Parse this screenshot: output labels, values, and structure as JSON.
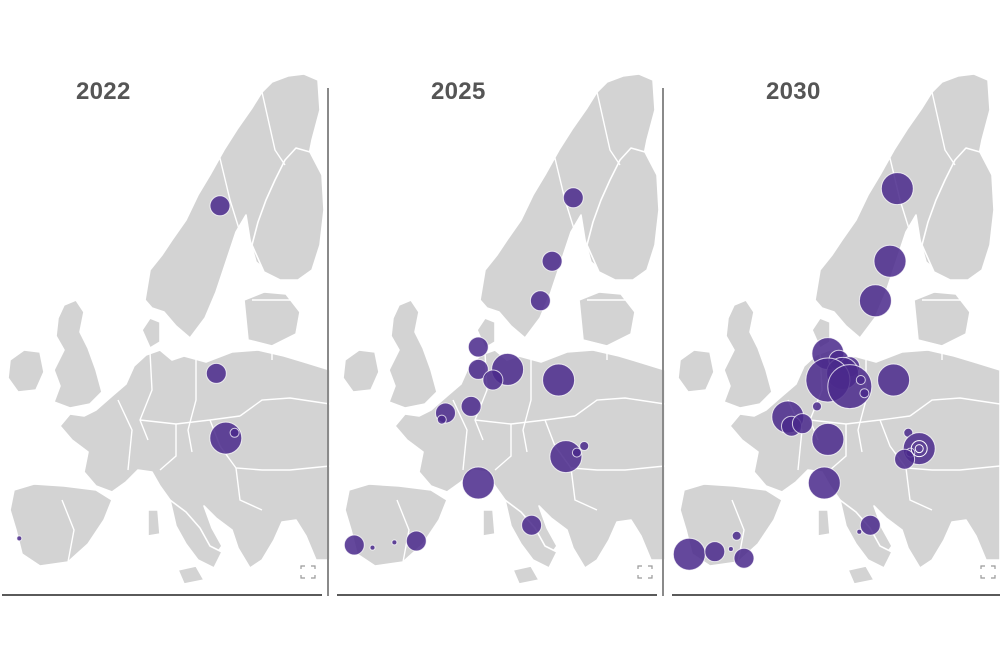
{
  "colors": {
    "bubble": "#4b2a8c",
    "land": "#d3d3d3",
    "border": "#ffffff",
    "year_text": "#555555"
  },
  "panels": [
    {
      "year": "2022",
      "sites": [
        {
          "lon": 19.0,
          "lat": 65.2,
          "size": "medium"
        },
        {
          "lon": 18.5,
          "lat": 52.5,
          "size": "medium"
        },
        {
          "lon": 19.8,
          "lat": 47.6,
          "size": "large"
        },
        {
          "lon": 21.0,
          "lat": 48.0,
          "size": "small"
        },
        {
          "lon": -8.5,
          "lat": 40.0,
          "size": "tiny"
        }
      ]
    },
    {
      "year": "2025",
      "sites": [
        {
          "lon": 21.5,
          "lat": 65.8,
          "size": "medium"
        },
        {
          "lon": 18.6,
          "lat": 61.0,
          "size": "medium"
        },
        {
          "lon": 17.0,
          "lat": 58.0,
          "size": "medium"
        },
        {
          "lon": 8.5,
          "lat": 54.5,
          "size": "medium"
        },
        {
          "lon": 8.5,
          "lat": 52.8,
          "size": "medium"
        },
        {
          "lon": 12.5,
          "lat": 52.8,
          "size": "large"
        },
        {
          "lon": 10.5,
          "lat": 52.0,
          "size": "medium"
        },
        {
          "lon": 19.5,
          "lat": 52.0,
          "size": "large"
        },
        {
          "lon": 7.5,
          "lat": 50.0,
          "size": "medium"
        },
        {
          "lon": 4.0,
          "lat": 49.5,
          "size": "medium"
        },
        {
          "lon": 3.5,
          "lat": 49.0,
          "size": "small"
        },
        {
          "lon": 20.5,
          "lat": 46.2,
          "size": "large"
        },
        {
          "lon": 22.0,
          "lat": 46.5,
          "size": "small"
        },
        {
          "lon": 23.0,
          "lat": 47.0,
          "size": "small"
        },
        {
          "lon": 8.5,
          "lat": 44.2,
          "size": "large"
        },
        {
          "lon": 15.8,
          "lat": 41.0,
          "size": "medium"
        },
        {
          "lon": -8.5,
          "lat": 39.5,
          "size": "medium"
        },
        {
          "lon": -6.0,
          "lat": 39.3,
          "size": "tiny"
        },
        {
          "lon": -3.0,
          "lat": 39.7,
          "size": "tiny"
        },
        {
          "lon": 0.0,
          "lat": 39.8,
          "size": "medium"
        }
      ]
    },
    {
      "year": "2030",
      "sites": [
        {
          "lon": 20.0,
          "lat": 66.5,
          "size": "large"
        },
        {
          "lon": 19.0,
          "lat": 61.0,
          "size": "large"
        },
        {
          "lon": 17.0,
          "lat": 58.0,
          "size": "large"
        },
        {
          "lon": 10.5,
          "lat": 54.0,
          "size": "large"
        },
        {
          "lon": 12.0,
          "lat": 53.5,
          "size": "medium"
        },
        {
          "lon": 13.5,
          "lat": 53.0,
          "size": "medium"
        },
        {
          "lon": 12.5,
          "lat": 52.5,
          "size": "large"
        },
        {
          "lon": 10.5,
          "lat": 52.0,
          "size": "xlarge"
        },
        {
          "lon": 13.5,
          "lat": 51.5,
          "size": "xlarge"
        },
        {
          "lon": 15.0,
          "lat": 52.0,
          "size": "small"
        },
        {
          "lon": 15.5,
          "lat": 51.0,
          "size": "small"
        },
        {
          "lon": 19.5,
          "lat": 52.0,
          "size": "large"
        },
        {
          "lon": 9.0,
          "lat": 50.0,
          "size": "small"
        },
        {
          "lon": 5.0,
          "lat": 49.2,
          "size": "large"
        },
        {
          "lon": 5.5,
          "lat": 48.5,
          "size": "medium"
        },
        {
          "lon": 7.0,
          "lat": 48.7,
          "size": "medium"
        },
        {
          "lon": 10.5,
          "lat": 47.5,
          "size": "large"
        },
        {
          "lon": 21.5,
          "lat": 48.0,
          "size": "small"
        },
        {
          "lon": 23.0,
          "lat": 46.8,
          "size": "large"
        },
        {
          "lon": 21.8,
          "lat": 46.5,
          "size": "small"
        },
        {
          "lon": 21.0,
          "lat": 46.0,
          "size": "medium"
        },
        {
          "lon": 10.0,
          "lat": 44.2,
          "size": "large"
        },
        {
          "lon": 16.3,
          "lat": 41.0,
          "size": "medium"
        },
        {
          "lon": 14.8,
          "lat": 40.5,
          "size": "tiny"
        },
        {
          "lon": -8.5,
          "lat": 38.8,
          "size": "large"
        },
        {
          "lon": -5.0,
          "lat": 39.0,
          "size": "medium"
        },
        {
          "lon": -2.8,
          "lat": 39.2,
          "size": "tiny"
        },
        {
          "lon": -2.0,
          "lat": 40.2,
          "size": "small"
        },
        {
          "lon": -1.0,
          "lat": 38.5,
          "size": "medium"
        }
      ]
    }
  ]
}
